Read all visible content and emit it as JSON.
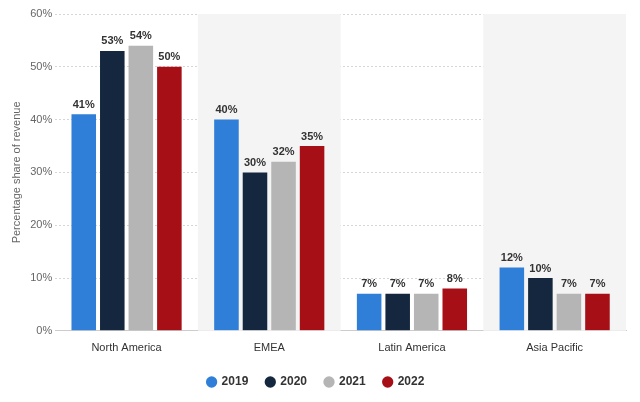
{
  "chart_data": {
    "type": "bar",
    "y_label": "Percentage share of revenue",
    "categories": [
      "North America",
      "EMEA",
      "Latin America",
      "Asia Pacific"
    ],
    "series": [
      {
        "name": "2019",
        "color": "#2f7ed8",
        "values": [
          41,
          40,
          7,
          12
        ],
        "value_labels": [
          "41%",
          "40%",
          "7%",
          "12%"
        ]
      },
      {
        "name": "2020",
        "color": "#14273f",
        "values": [
          53,
          30,
          7,
          10
        ],
        "value_labels": [
          "53%",
          "30%",
          "7%",
          "10%"
        ]
      },
      {
        "name": "2021",
        "color": "#b5b5b5",
        "values": [
          54,
          32,
          7,
          7
        ],
        "value_labels": [
          "54%",
          "32%",
          "7%",
          "7%"
        ]
      },
      {
        "name": "2022",
        "color": "#a50f15",
        "values": [
          50,
          35,
          8,
          7
        ],
        "value_labels": [
          "50%",
          "35%",
          "8%",
          "7%"
        ]
      }
    ],
    "ylim": [
      0,
      60
    ],
    "yticks": [
      {
        "value": 0,
        "label": "0%"
      },
      {
        "value": 10,
        "label": "10%"
      },
      {
        "value": 20,
        "label": "20%"
      },
      {
        "value": 30,
        "label": "30%"
      },
      {
        "value": 40,
        "label": "40%"
      },
      {
        "value": 50,
        "label": "50%"
      },
      {
        "value": 60,
        "label": "60%"
      }
    ],
    "grid": true,
    "legend": "bottom",
    "data_labels": true
  }
}
